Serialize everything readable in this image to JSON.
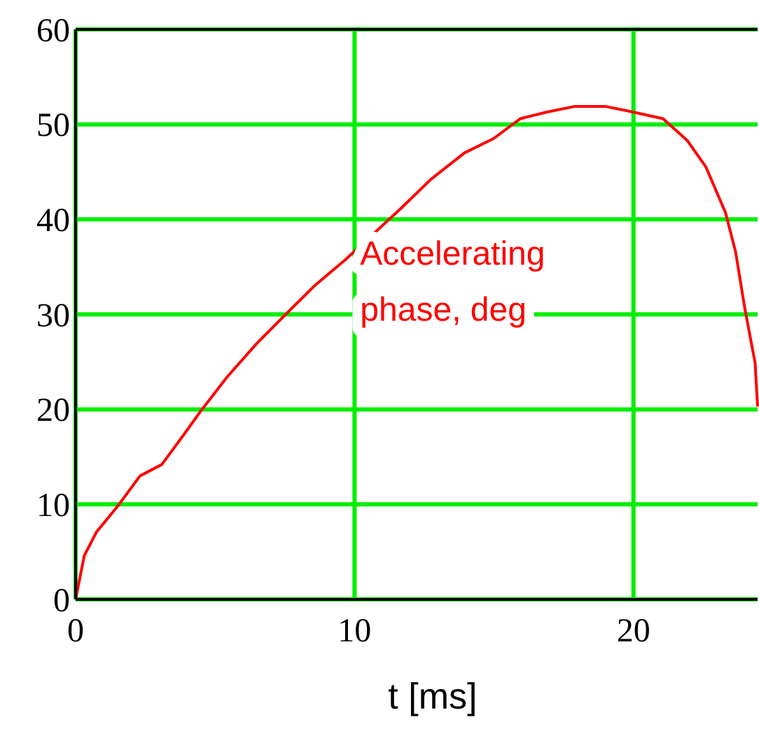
{
  "chart_data": {
    "type": "line",
    "xlabel": "t [ms]",
    "xlim": [
      0,
      24.45
    ],
    "xticks": [
      0,
      10,
      20
    ],
    "ylim": [
      0,
      60
    ],
    "yticks": [
      0,
      10,
      20,
      30,
      40,
      50,
      60
    ],
    "grid": true,
    "marker": "none",
    "line_style": "solid",
    "x": [
      0,
      0.31,
      0.75,
      1.53,
      2.31,
      3.09,
      3.87,
      4.48,
      5.43,
      6.48,
      7.6,
      8.56,
      9.69,
      11.68,
      12.73,
      13.94,
      14.98,
      15.94,
      16.9,
      17.9,
      18.98,
      19.84,
      21.06,
      21.93,
      22.6,
      23.3,
      23.66,
      24.0,
      24.36,
      24.45
    ],
    "series": [
      {
        "name": "Accelerating phase, deg",
        "color": "#ff0000",
        "values": [
          0,
          4.6,
          7.1,
          9.9,
          13,
          14.2,
          17.3,
          19.8,
          23.4,
          26.9,
          30.2,
          33,
          35.8,
          41.2,
          44.2,
          47,
          48.5,
          50.6,
          51.3,
          51.9,
          51.9,
          51.4,
          50.6,
          48.3,
          45.5,
          40.7,
          36.6,
          30.5,
          24.9,
          20.3
        ]
      }
    ]
  }
}
